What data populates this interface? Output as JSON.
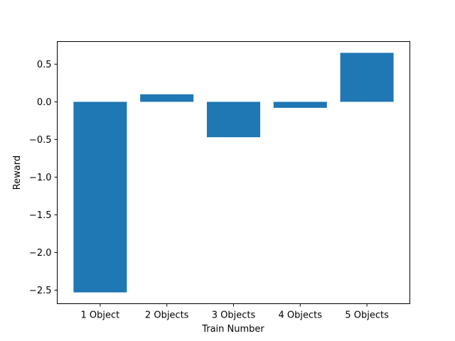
{
  "chart_data": {
    "type": "bar",
    "title": "",
    "xlabel": "Train Number",
    "ylabel": "Reward",
    "categories": [
      "1 Object",
      "2 Objects",
      "3 Objects",
      "4 Objects",
      "5 Objects"
    ],
    "values": [
      -2.53,
      0.1,
      -0.47,
      -0.08,
      0.65
    ],
    "ylim": [
      -2.68,
      0.8
    ],
    "yticks": [
      0.5,
      0.0,
      -0.5,
      -1.0,
      -1.5,
      -2.0,
      -2.5
    ],
    "ytick_labels": [
      "0.5",
      "0.0",
      "−0.5",
      "−1.0",
      "−1.5",
      "−2.0",
      "−2.5"
    ],
    "bar_color": "#1f77b4",
    "grid": false,
    "legend": "none"
  }
}
